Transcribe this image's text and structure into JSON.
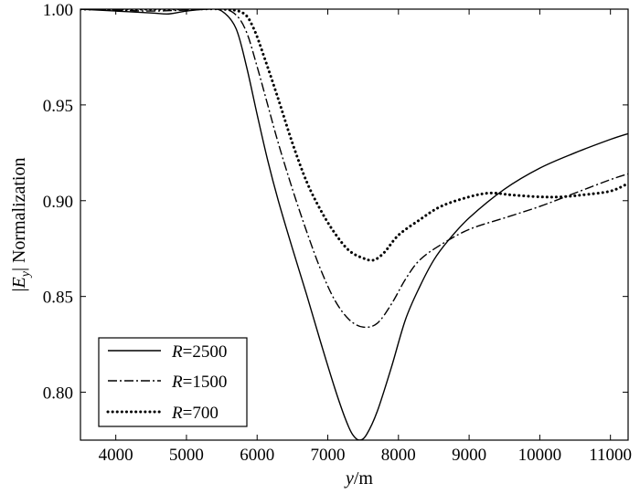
{
  "chart_data": {
    "type": "line",
    "title": "",
    "xlabel_var": "y",
    "xlabel_unit": "/m",
    "ylabel_abs": "|",
    "ylabel_var": "E",
    "ylabel_sub": "y",
    "ylabel_rest": "| Normalization",
    "xlim": [
      3500,
      11250
    ],
    "ylim": [
      0.775,
      1.0
    ],
    "xticks": [
      4000,
      5000,
      6000,
      7000,
      8000,
      9000,
      10000,
      11000
    ],
    "xtick_labels": [
      "4000",
      "5000",
      "6000",
      "7000",
      "8000",
      "9000",
      "10000",
      "11000"
    ],
    "yticks": [
      0.8,
      0.85,
      0.9,
      0.95,
      1.0
    ],
    "ytick_labels": [
      "0.80",
      "0.85",
      "0.90",
      "0.95",
      "1.00"
    ],
    "legend_position": "bottom-left",
    "series": [
      {
        "name": "R=2500",
        "name_var": "R",
        "name_value": "=2500",
        "style": "solid",
        "points": [
          [
            3500,
            1.0
          ],
          [
            4000,
            0.999
          ],
          [
            4500,
            0.998
          ],
          [
            4750,
            0.9975
          ],
          [
            5000,
            0.999
          ],
          [
            5300,
            1.0
          ],
          [
            5500,
            0.999
          ],
          [
            5700,
            0.99
          ],
          [
            5850,
            0.97
          ],
          [
            6000,
            0.945
          ],
          [
            6150,
            0.921
          ],
          [
            6300,
            0.9
          ],
          [
            6500,
            0.875
          ],
          [
            6700,
            0.851
          ],
          [
            6900,
            0.826
          ],
          [
            7100,
            0.802
          ],
          [
            7250,
            0.786
          ],
          [
            7350,
            0.778
          ],
          [
            7450,
            0.775
          ],
          [
            7550,
            0.778
          ],
          [
            7700,
            0.79
          ],
          [
            7900,
            0.813
          ],
          [
            8100,
            0.838
          ],
          [
            8300,
            0.855
          ],
          [
            8500,
            0.869
          ],
          [
            8700,
            0.879
          ],
          [
            9000,
            0.891
          ],
          [
            9500,
            0.906
          ],
          [
            10000,
            0.917
          ],
          [
            10500,
            0.925
          ],
          [
            11000,
            0.932
          ],
          [
            11250,
            0.935
          ]
        ]
      },
      {
        "name": "R=1500",
        "name_var": "R",
        "name_value": "=1500",
        "style": "dashdot",
        "points": [
          [
            3500,
            1.0
          ],
          [
            4000,
            0.9995
          ],
          [
            4500,
            0.999
          ],
          [
            5000,
            0.9995
          ],
          [
            5500,
            1.0
          ],
          [
            5700,
            0.997
          ],
          [
            5850,
            0.988
          ],
          [
            6000,
            0.97
          ],
          [
            6150,
            0.95
          ],
          [
            6300,
            0.93
          ],
          [
            6500,
            0.906
          ],
          [
            6700,
            0.884
          ],
          [
            6900,
            0.864
          ],
          [
            7100,
            0.848
          ],
          [
            7300,
            0.838
          ],
          [
            7500,
            0.834
          ],
          [
            7700,
            0.836
          ],
          [
            7900,
            0.846
          ],
          [
            8100,
            0.859
          ],
          [
            8300,
            0.869
          ],
          [
            8600,
            0.877
          ],
          [
            9000,
            0.885
          ],
          [
            9500,
            0.891
          ],
          [
            10000,
            0.897
          ],
          [
            10500,
            0.904
          ],
          [
            11000,
            0.911
          ],
          [
            11250,
            0.914
          ]
        ]
      },
      {
        "name": "R=700",
        "name_var": "R",
        "name_value": "=700",
        "style": "dotted",
        "points": [
          [
            3500,
            1.0
          ],
          [
            4000,
            1.0
          ],
          [
            4500,
            1.0
          ],
          [
            5000,
            1.0
          ],
          [
            5500,
            1.0
          ],
          [
            5800,
            0.998
          ],
          [
            5950,
            0.99
          ],
          [
            6100,
            0.975
          ],
          [
            6300,
            0.953
          ],
          [
            6500,
            0.93
          ],
          [
            6700,
            0.91
          ],
          [
            6900,
            0.895
          ],
          [
            7100,
            0.883
          ],
          [
            7300,
            0.874
          ],
          [
            7500,
            0.87
          ],
          [
            7650,
            0.869
          ],
          [
            7800,
            0.873
          ],
          [
            8000,
            0.882
          ],
          [
            8300,
            0.89
          ],
          [
            8600,
            0.897
          ],
          [
            9000,
            0.902
          ],
          [
            9300,
            0.904
          ],
          [
            9600,
            0.903
          ],
          [
            10000,
            0.902
          ],
          [
            10300,
            0.902
          ],
          [
            10600,
            0.903
          ],
          [
            11000,
            0.905
          ],
          [
            11250,
            0.909
          ]
        ]
      }
    ]
  }
}
